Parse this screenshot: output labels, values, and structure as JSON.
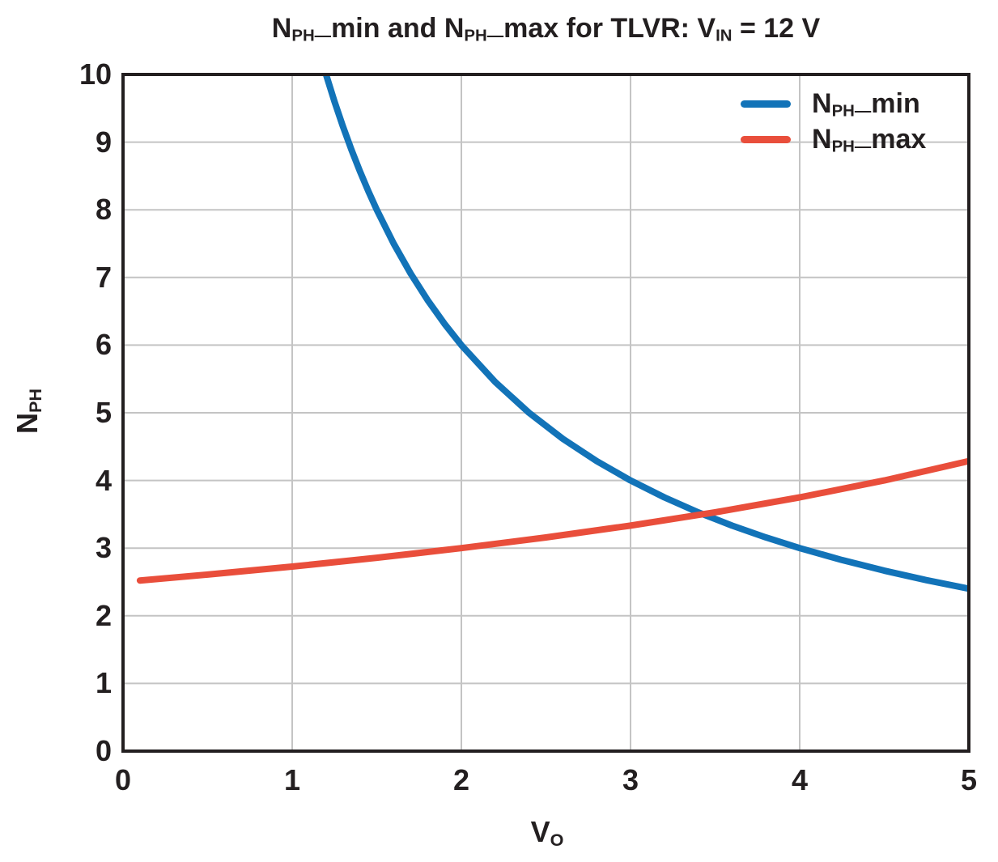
{
  "title": {
    "p1": "N",
    "s1": "PH—",
    "p2": "min and N",
    "s2": "PH—",
    "p3": "max for TLVR: V",
    "s3": "IN",
    "p4": " = 12 V"
  },
  "axes": {
    "x": {
      "label_main": "V",
      "label_sub": "O"
    },
    "y": {
      "label_main": "N",
      "label_sub": "PH"
    }
  },
  "legend": {
    "items": [
      {
        "pre": "N",
        "sub": "PH—",
        "post": "min"
      },
      {
        "pre": "N",
        "sub": "PH—",
        "post": "max"
      }
    ]
  },
  "colors": {
    "background": "#ffffff",
    "grid": "#c4c4c4",
    "spine": "#231f20",
    "text": "#231f20",
    "blue": "#1273b8",
    "red": "#e94e3b"
  },
  "chart_data": {
    "type": "line",
    "title": "N_PH_min and N_PH_max for TLVR: V_IN = 12 V",
    "xlabel": "V_O",
    "ylabel": "N_PH",
    "xlim": [
      0,
      5
    ],
    "ylim": [
      0,
      10
    ],
    "xticks": [
      0,
      1,
      2,
      3,
      4,
      5
    ],
    "yticks": [
      0,
      1,
      2,
      3,
      4,
      5,
      6,
      7,
      8,
      9,
      10
    ],
    "grid": true,
    "legend_position": "upper right",
    "line_width": 8,
    "series": [
      {
        "name": "N_PH_min",
        "color": "#1273b8",
        "x": [
          1.2,
          1.25,
          1.3,
          1.35,
          1.4,
          1.45,
          1.5,
          1.6,
          1.7,
          1.8,
          1.9,
          2.0,
          2.2,
          2.4,
          2.6,
          2.8,
          3.0,
          3.2,
          3.4,
          3.6,
          3.8,
          4.0,
          4.25,
          4.5,
          4.75,
          5.0
        ],
        "y": [
          10,
          9.6,
          9.231,
          8.889,
          8.571,
          8.276,
          8.0,
          7.5,
          7.059,
          6.667,
          6.316,
          6.0,
          5.455,
          5.0,
          4.615,
          4.286,
          4.0,
          3.75,
          3.529,
          3.333,
          3.158,
          3.0,
          2.824,
          2.667,
          2.526,
          2.4
        ]
      },
      {
        "name": "N_PH_max",
        "color": "#e94e3b",
        "x": [
          0.1,
          0.5,
          1.0,
          1.5,
          2.0,
          2.5,
          3.0,
          3.5,
          4.0,
          4.5,
          5.0
        ],
        "y": [
          2.521,
          2.609,
          2.727,
          2.857,
          3.0,
          3.158,
          3.333,
          3.529,
          3.75,
          4.0,
          4.286
        ]
      }
    ]
  }
}
